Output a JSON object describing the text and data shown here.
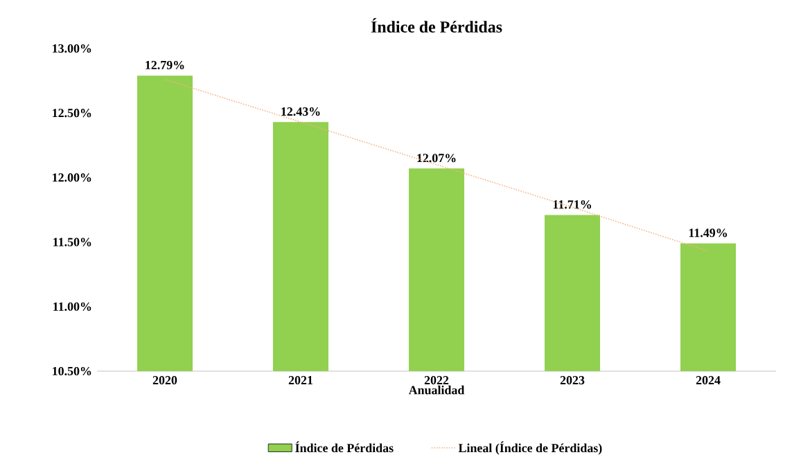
{
  "chart_data": {
    "type": "bar",
    "title": "Índice de Pérdidas",
    "xlabel": "Anualidad",
    "categories": [
      "2020",
      "2021",
      "2022",
      "2023",
      "2024"
    ],
    "series": [
      {
        "name": "Índice de Pérdidas",
        "color": "#92d050",
        "values": [
          12.79,
          12.43,
          12.07,
          11.71,
          11.49
        ],
        "value_labels": [
          "12.79%",
          "12.43%",
          "12.07%",
          "11.71%",
          "11.49%"
        ]
      },
      {
        "name": "Lineal (Índice de Pérdidas)",
        "type": "line",
        "color": "#f4b183",
        "line_style": "dotted",
        "values": [
          12.76,
          12.43,
          12.1,
          11.77,
          11.43
        ]
      }
    ],
    "ylim": [
      10.5,
      13.0
    ],
    "yticks": [
      {
        "value": 10.5,
        "label": "10.50%"
      },
      {
        "value": 11.0,
        "label": "11.00%"
      },
      {
        "value": 11.5,
        "label": "11.50%"
      },
      {
        "value": 12.0,
        "label": "12.00%"
      },
      {
        "value": 12.5,
        "label": "12.50%"
      },
      {
        "value": 13.0,
        "label": "13.00%"
      }
    ],
    "grid": false,
    "legend": "bottom"
  }
}
